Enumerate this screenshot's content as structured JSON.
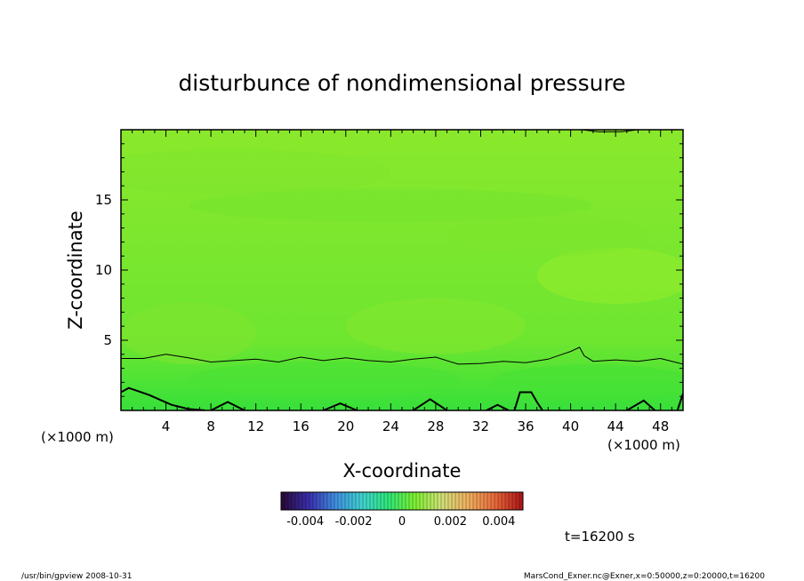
{
  "chart_data": {
    "type": "heatmap",
    "title": "disturbunce of nondimensional pressure",
    "xlabel": "X-coordinate",
    "ylabel": "Z-coordinate",
    "x_units_left": "(×1000 m)",
    "x_units_right": "(×1000 m)",
    "xlim": [
      0,
      50
    ],
    "ylim": [
      0,
      20
    ],
    "x_ticks": [
      4,
      8,
      12,
      16,
      20,
      24,
      28,
      32,
      36,
      40,
      44,
      48
    ],
    "x_tick_labels": [
      "4",
      "8",
      "12",
      "16",
      "20",
      "24",
      "28",
      "32",
      "36",
      "40",
      "44",
      "48"
    ],
    "y_ticks": [
      5,
      10,
      15
    ],
    "y_tick_labels": [
      "5",
      "10",
      "15"
    ],
    "colorbar": {
      "range": [
        -0.005,
        0.005
      ],
      "tick_labels": [
        "-0.004",
        "-0.002",
        "0",
        "0.002",
        "0.004"
      ],
      "colors": [
        "#2a0a3a",
        "#3a2fb0",
        "#3f8fe0",
        "#3fd3d0",
        "#2ee878",
        "#7ef030",
        "#d2e07a",
        "#f0b060",
        "#e86a3a",
        "#b01818"
      ]
    },
    "field_colors": {
      "lower": "#37e03a",
      "middle": "#6ee630",
      "upper": "#8ae82c"
    },
    "contour_thin": {
      "x": [
        0,
        2,
        4,
        6,
        8,
        10,
        12,
        14,
        16,
        18,
        20,
        22,
        24,
        26,
        28,
        30,
        32,
        34,
        36,
        38,
        40,
        40.8,
        41.2,
        42,
        44,
        46,
        48,
        50
      ],
      "z": [
        3.7,
        3.7,
        4.0,
        3.75,
        3.45,
        3.55,
        3.65,
        3.45,
        3.8,
        3.55,
        3.75,
        3.55,
        3.45,
        3.65,
        3.8,
        3.3,
        3.35,
        3.5,
        3.4,
        3.65,
        4.2,
        4.5,
        3.9,
        3.5,
        3.6,
        3.5,
        3.7,
        3.3
      ]
    },
    "contour_thick": [
      {
        "x": [
          0,
          0.7,
          2.5,
          4.5,
          6,
          7.5
        ],
        "z": [
          1.3,
          1.6,
          1.1,
          0.4,
          0.1,
          0.0
        ]
      },
      {
        "x": [
          8,
          9.5,
          11
        ],
        "z": [
          0.0,
          0.6,
          0.0
        ]
      },
      {
        "x": [
          18,
          19.5,
          21
        ],
        "z": [
          0.0,
          0.5,
          0.0
        ]
      },
      {
        "x": [
          26,
          27.5,
          29
        ],
        "z": [
          0.0,
          0.8,
          0.0
        ]
      },
      {
        "x": [
          32.5,
          33.5,
          34.5
        ],
        "z": [
          0.0,
          0.4,
          0.0
        ]
      },
      {
        "x": [
          35,
          35.5,
          36.5,
          37,
          37.5
        ],
        "z": [
          0.0,
          1.3,
          1.3,
          0.6,
          0.0
        ]
      },
      {
        "x": [
          45,
          46.5,
          47.5
        ],
        "z": [
          0.0,
          0.7,
          0.0
        ]
      },
      {
        "x": [
          49.5,
          50
        ],
        "z": [
          0.0,
          1.2
        ]
      }
    ],
    "contour_top": {
      "x": [
        41,
        42.5,
        44.5,
        46
      ],
      "z": [
        20,
        19.85,
        19.85,
        20
      ]
    }
  },
  "annotations": {
    "time_label": "t=16200 s",
    "footer_left": "/usr/bin/gpview   2008-10-31",
    "footer_right": "MarsCond_Exner.nc@Exner,x=0:50000,z=0:20000,t=16200"
  }
}
